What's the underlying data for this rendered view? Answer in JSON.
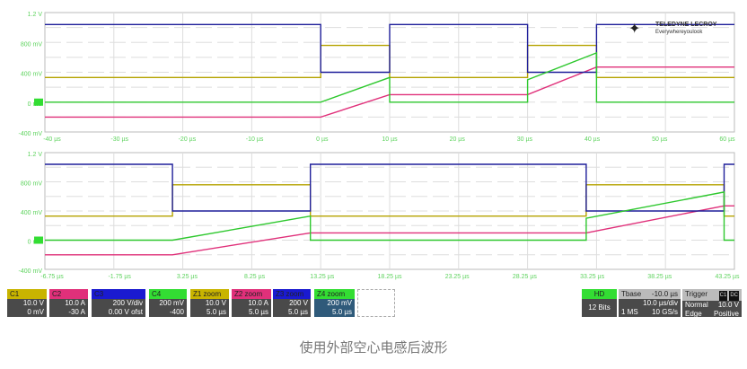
{
  "chart_data": {
    "type": "line",
    "y_unit_display": "V",
    "ylim": [
      -0.4,
      1.2
    ],
    "y_ticks": [
      "1.2 V",
      "800 mV",
      "400 mV",
      "0 mV",
      "-400 mV"
    ],
    "grid": true,
    "panels": [
      {
        "xlim": [
          -40,
          60
        ],
        "x_ticks": [
          "-40 µs",
          "-30 µs",
          "-20 µs",
          "-10 µs",
          "0 µs",
          "10 µs",
          "20 µs",
          "30 µs",
          "40 µs",
          "50 µs",
          "60 µs"
        ]
      },
      {
        "xlim": [
          -9.25,
          40.75
        ],
        "x_ticks": [
          "-6.75 µs",
          "-1.75 µs",
          "3.25 µs",
          "8.25 µs",
          "13.25 µs",
          "18.25 µs",
          "23.25 µs",
          "28.25 µs",
          "33.25 µs",
          "38.25 µs",
          "43.25 µs"
        ]
      }
    ],
    "series": [
      {
        "name": "C1",
        "color": "#b5a300",
        "x": [
          -40,
          0,
          0,
          10,
          10,
          30,
          30,
          40,
          40,
          60
        ],
        "y": [
          0.33,
          0.33,
          0.76,
          0.76,
          0.33,
          0.33,
          0.76,
          0.76,
          0.33,
          0.33
        ]
      },
      {
        "name": "C2",
        "color": "#e0307a",
        "x": [
          -40,
          0,
          10,
          30,
          40,
          60
        ],
        "y": [
          -0.2,
          -0.2,
          0.1,
          0.1,
          0.47,
          0.47
        ]
      },
      {
        "name": "C3",
        "color": "#1e1e9a",
        "x": [
          -40,
          0,
          0,
          10,
          10,
          30,
          30,
          40,
          40,
          60
        ],
        "y": [
          1.04,
          1.04,
          0.4,
          0.4,
          1.04,
          1.04,
          0.4,
          0.4,
          1.04,
          1.04
        ]
      },
      {
        "name": "C4",
        "color": "#2ec82e",
        "x": [
          -40,
          0,
          10,
          10,
          30,
          30,
          40,
          40,
          60
        ],
        "y": [
          0,
          0,
          0.33,
          0,
          0,
          0.3,
          0.66,
          0,
          0
        ]
      }
    ]
  },
  "logo": {
    "brand": "TELEDYNE LECROY",
    "tagline": "Everywhereyoulook"
  },
  "channels": [
    {
      "id": "C1",
      "color": "#c8b400",
      "v1": "10.0 V",
      "v2": "0 mV"
    },
    {
      "id": "C2",
      "color": "#e0307a",
      "v1": "10.0 A",
      "v2": "-30 A"
    },
    {
      "id": "C3",
      "color": "#1a1ad0",
      "v1": "200 V/div",
      "v2": "0.00 V ofst"
    },
    {
      "id": "C4",
      "color": "#33dd33",
      "v1": "200 mV",
      "v2": "-400"
    },
    {
      "id": "Z1 zoom",
      "color": "#c8b400",
      "v1": "10.0 V",
      "v2": "5.0 µs"
    },
    {
      "id": "Z2 zoom",
      "color": "#e0307a",
      "v1": "10.0 A",
      "v2": "5.0 µs"
    },
    {
      "id": "Z3 zoom",
      "color": "#1a1ad0",
      "v1": "200 V",
      "v2": "5.0 µs"
    },
    {
      "id": "Z4 zoom",
      "color": "#33dd33",
      "v1": "200 mV",
      "v2": "5.0 µs"
    }
  ],
  "hd": {
    "label": "HD",
    "bits": "12 Bits"
  },
  "tbase": {
    "label": "Tbase",
    "delay": "-10.0 µs",
    "div": "10.0 µs/div",
    "pts": "1 MS",
    "rate": "10 GS/s"
  },
  "trigger": {
    "label": "Trigger",
    "ch": "C1",
    "coupling": "DC",
    "mode": "Normal",
    "level": "10.0 V",
    "type": "Edge",
    "slope": "Positive"
  },
  "caption": "使用外部空心电感后波形"
}
